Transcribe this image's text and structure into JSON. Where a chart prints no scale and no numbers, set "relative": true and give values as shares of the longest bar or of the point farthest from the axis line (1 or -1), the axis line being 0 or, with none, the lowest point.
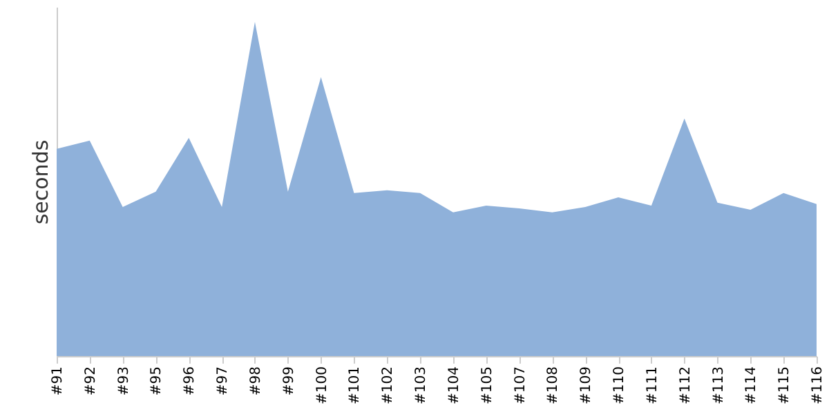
{
  "chart_data": {
    "type": "area",
    "ylabel": "seconds",
    "relative": true,
    "grid": false,
    "categories": [
      "#91",
      "#92",
      "#93",
      "#95",
      "#96",
      "#97",
      "#98",
      "#99",
      "#100",
      "#101",
      "#102",
      "#103",
      "#104",
      "#105",
      "#107",
      "#108",
      "#109",
      "#110",
      "#111",
      "#112",
      "#113",
      "#114",
      "#115",
      "#116"
    ],
    "series": [
      {
        "color": "#8fb1da",
        "values": [
          0.62,
          0.645,
          0.446,
          0.492,
          0.653,
          0.446,
          1,
          0.492,
          0.835,
          0.488,
          0.496,
          0.488,
          0.43,
          0.45,
          0.442,
          0.43,
          0.446,
          0.475,
          0.45,
          0.711,
          0.459,
          0.438,
          0.488,
          0.455
        ]
      }
    ]
  }
}
